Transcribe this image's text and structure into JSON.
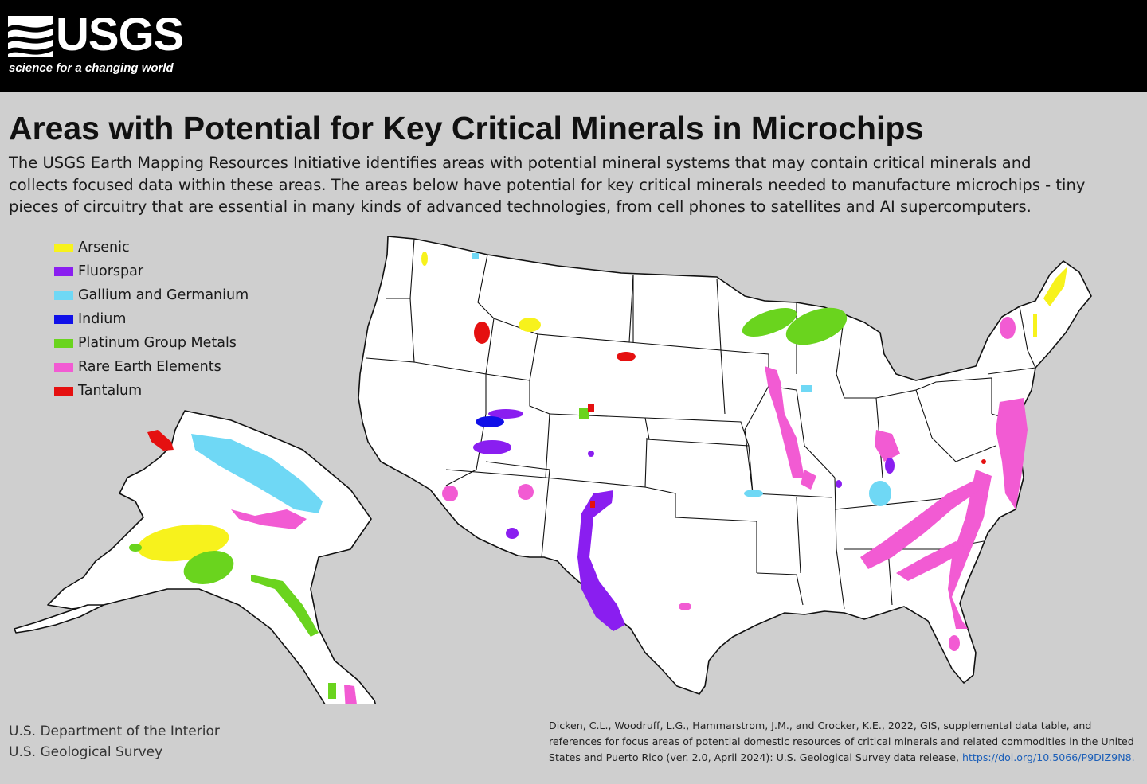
{
  "brand": {
    "name": "USGS",
    "tagline": "science for a changing world"
  },
  "title": "Areas with Potential for Key Critical Minerals in Microchips",
  "intro_lines": [
    "The USGS Earth Mapping Resources Initiative identifies areas with potential mineral systems that may contain critical minerals and",
    "collects focused data within these areas. The areas below have potential for key critical minerals needed to manufacture microchips - tiny",
    "pieces of circuitry that are essential in many kinds of advanced technologies, from cell phones to satellites and AI supercomputers."
  ],
  "legend": [
    {
      "label": "Arsenic",
      "color": "#f7f21c"
    },
    {
      "label": "Fluorspar",
      "color": "#8a1ef0"
    },
    {
      "label": "Gallium and Germanium",
      "color": "#6fd8f5"
    },
    {
      "label": "Indium",
      "color": "#1010e8"
    },
    {
      "label": "Platinum Group Metals",
      "color": "#6ad41e"
    },
    {
      "label": "Rare Earth Elements",
      "color": "#f25bd3"
    },
    {
      "label": "Tantalum",
      "color": "#e51010"
    }
  ],
  "agency_lines": [
    "U.S. Department of the Interior",
    "U.S. Geological Survey"
  ],
  "citation": {
    "lines": [
      "Dicken, C.L., Woodruff, L.G., Hammarstrom, J.M., and Crocker, K.E., 2022, GIS, supplemental data table, and",
      "references for focus areas of potential domestic resources of critical minerals and related commodities in the United",
      "States and Puerto Rico (ver. 2.0, April 2024): U.S. Geological Survey data release, "
    ],
    "link": "https://doi.org/10.5066/P9DIZ9N8."
  },
  "colors": {
    "background": "#cfcfcf",
    "land": "#ffffff",
    "boundary": "#111111",
    "header": "#000000"
  }
}
